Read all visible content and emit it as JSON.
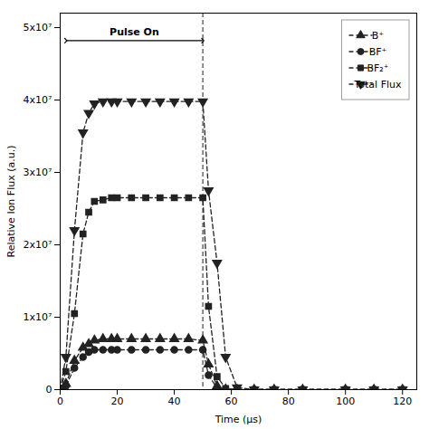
{
  "chart_data": {
    "type": "line",
    "xlabel": "Time (μs)",
    "ylabel": "Relative Ion Flux (a.u.)",
    "xlim": [
      0,
      125
    ],
    "ylim": [
      0,
      52000000.0
    ],
    "xticks": [
      0,
      20,
      40,
      60,
      80,
      100,
      120
    ],
    "yticks": [
      0,
      {
        "value": 10000000.0,
        "label": "1x10⁷"
      },
      {
        "value": 20000000.0,
        "label": "2x10⁷"
      },
      {
        "value": 30000000.0,
        "label": "3x10⁷"
      },
      {
        "value": 40000000.0,
        "label": "4x10⁷"
      },
      {
        "value": 50000000.0,
        "label": "5x10⁷"
      }
    ],
    "grid": false,
    "legend": "upper right",
    "x": [
      0,
      2,
      5,
      8,
      10,
      12,
      15,
      18,
      20,
      25,
      30,
      35,
      40,
      45,
      50,
      52,
      55,
      58,
      62,
      68,
      75,
      85,
      100,
      110,
      120
    ],
    "series": [
      {
        "name": "B⁺",
        "color": "#222222",
        "marker": "triangle-up",
        "line_style": "dashed",
        "values": [
          0,
          800000.0,
          4000000.0,
          5800000.0,
          6300000.0,
          6800000.0,
          7000000.0,
          7000000.0,
          7000000.0,
          7000000.0,
          7000000.0,
          7000000.0,
          7000000.0,
          7000000.0,
          6800000.0,
          3500000.0,
          500000.0,
          50000.0,
          0,
          0,
          0,
          0,
          0,
          0,
          0
        ]
      },
      {
        "name": "BF⁺",
        "color": "#222222",
        "marker": "circle",
        "line_style": "dashed",
        "values": [
          0,
          500000.0,
          3000000.0,
          4500000.0,
          5200000.0,
          5500000.0,
          5500000.0,
          5500000.0,
          5500000.0,
          5500000.0,
          5500000.0,
          5500000.0,
          5500000.0,
          5500000.0,
          5500000.0,
          2000000.0,
          200000.0,
          20000.0,
          0,
          0,
          0,
          0,
          0,
          0,
          0
        ]
      },
      {
        "name": "BF₂⁺",
        "color": "#222222",
        "marker": "square",
        "line_style": "dashed",
        "values": [
          0,
          2500000.0,
          10500000.0,
          21500000.0,
          24500000.0,
          26000000.0,
          26200000.0,
          26500000.0,
          26500000.0,
          26500000.0,
          26500000.0,
          26500000.0,
          26500000.0,
          26500000.0,
          26500000.0,
          11500000.0,
          1800000.0,
          150000.0,
          0,
          0,
          0,
          0,
          0,
          0,
          0
        ]
      },
      {
        "name": "Total Flux",
        "color": "#222222",
        "marker": "triangle-down",
        "line_style": "dashed",
        "values": [
          0,
          4500000.0,
          22000000.0,
          35500000.0,
          38200000.0,
          39500000.0,
          39800000.0,
          39800000.0,
          39800000.0,
          39800000.0,
          39800000.0,
          39800000.0,
          39800000.0,
          39800000.0,
          39800000.0,
          27500000.0,
          17500000.0,
          4500000.0,
          300000.0,
          0,
          0,
          0,
          0,
          0,
          0
        ]
      }
    ],
    "vlines": [
      {
        "x": 50,
        "color": "#444444",
        "line_style": "dashed"
      }
    ],
    "annotations": [
      {
        "text": "Pulse On",
        "x1": 2,
        "x2": 50,
        "y": 48200000.0
      }
    ]
  }
}
